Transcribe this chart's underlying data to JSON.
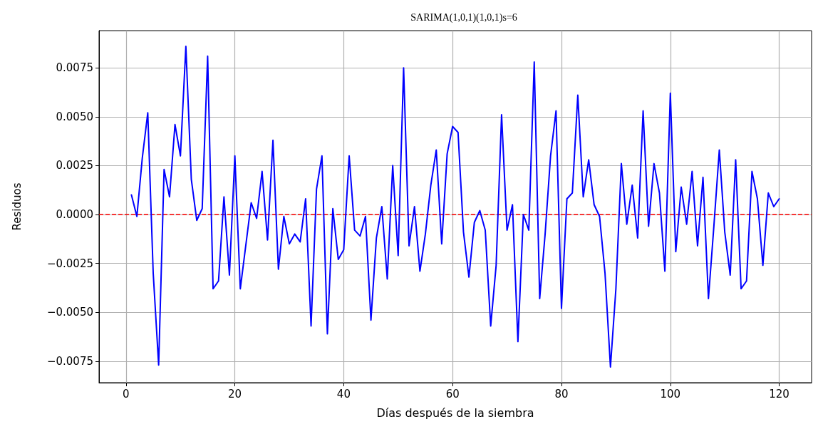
{
  "chart_data": {
    "type": "line",
    "title": "SARIMA(1,0,1)(1,0,1)s=6",
    "xlabel": "Días después de la siembra",
    "ylabel": "Residuos",
    "x": [
      1,
      2,
      3,
      4,
      5,
      6,
      7,
      8,
      9,
      10,
      11,
      12,
      13,
      14,
      15,
      16,
      17,
      18,
      19,
      20,
      21,
      22,
      23,
      24,
      25,
      26,
      27,
      28,
      29,
      30,
      31,
      32,
      33,
      34,
      35,
      36,
      37,
      38,
      39,
      40,
      41,
      42,
      43,
      44,
      45,
      46,
      47,
      48,
      49,
      50,
      51,
      52,
      53,
      54,
      55,
      56,
      57,
      58,
      59,
      60,
      61,
      62,
      63,
      64,
      65,
      66,
      67,
      68,
      69,
      70,
      71,
      72,
      73,
      74,
      75,
      76,
      77,
      78,
      79,
      80,
      81,
      82,
      83,
      84,
      85,
      86,
      87,
      88,
      89,
      90,
      91,
      92,
      93,
      94,
      95,
      96,
      97,
      98,
      99,
      100,
      101,
      102,
      103,
      104,
      105,
      106,
      107,
      108,
      109,
      110,
      111,
      112,
      113,
      114,
      115,
      116,
      117,
      118,
      119,
      120
    ],
    "series": [
      {
        "color": "#0000ff",
        "values": [
          0.001,
          -0.0001,
          0.0029,
          0.0052,
          -0.003,
          -0.0077,
          0.0023,
          0.0009,
          0.0046,
          0.003,
          0.0086,
          0.0018,
          -0.0003,
          0.0003,
          0.0081,
          -0.0038,
          -0.0034,
          0.0009,
          -0.0031,
          0.003,
          -0.0038,
          -0.0016,
          0.0006,
          -0.0002,
          0.0022,
          -0.0013,
          0.0038,
          -0.0028,
          -0.0001,
          -0.0015,
          -0.001,
          -0.0014,
          0.0008,
          -0.0057,
          0.0013,
          0.003,
          -0.0061,
          0.0003,
          -0.0023,
          -0.0018,
          0.003,
          -0.0008,
          -0.0011,
          -0.0001,
          -0.0054,
          -0.0012,
          0.0004,
          -0.0033,
          0.0025,
          -0.0021,
          0.0075,
          -0.0016,
          0.0004,
          -0.0029,
          -0.001,
          0.0015,
          0.0033,
          -0.0015,
          0.0031,
          0.0045,
          0.0042,
          -0.0009,
          -0.0032,
          -0.0004,
          0.0002,
          -0.0008,
          -0.0057,
          -0.0026,
          0.0051,
          -0.0008,
          0.0005,
          -0.0065,
          0.0,
          -0.0008,
          0.0078,
          -0.0043,
          -0.001,
          0.003,
          0.0053,
          -0.0048,
          0.0008,
          0.0011,
          0.0061,
          0.0009,
          0.0028,
          0.0005,
          -0.0001,
          -0.003,
          -0.0078,
          -0.0038,
          0.0026,
          -0.0005,
          0.0015,
          -0.0012,
          0.0053,
          -0.0006,
          0.0026,
          0.0011,
          -0.0029,
          0.0062,
          -0.0019,
          0.0014,
          -0.0005,
          0.0022,
          -0.0016,
          0.0019,
          -0.0043,
          -0.0006,
          0.0033,
          -0.0009,
          -0.0031,
          0.0028,
          -0.0038,
          -0.0034,
          0.0022,
          0.0008,
          -0.0026,
          0.0011,
          0.0004,
          0.0008
        ]
      }
    ],
    "xlim": [
      -4.95,
      125.95
    ],
    "xticks": [
      0,
      20,
      40,
      60,
      80,
      100,
      120
    ],
    "ylim": [
      -0.0086,
      0.0094
    ],
    "yticks": [
      {
        "value": -0.0075,
        "label": "−0.0075"
      },
      {
        "value": -0.005,
        "label": "−0.0050"
      },
      {
        "value": -0.0025,
        "label": "−0.0025"
      },
      {
        "value": 0,
        "label": "0.0000"
      },
      {
        "value": 0.0025,
        "label": "0.0025"
      },
      {
        "value": 0.005,
        "label": "0.0050"
      },
      {
        "value": 0.0075,
        "label": "0.0075"
      }
    ],
    "ref_lines": [
      {
        "axis": "y",
        "value": 0,
        "color": "#ff0000",
        "line_style": "dashed"
      }
    ],
    "grid": true,
    "line_style": "solid",
    "marker": "none"
  }
}
